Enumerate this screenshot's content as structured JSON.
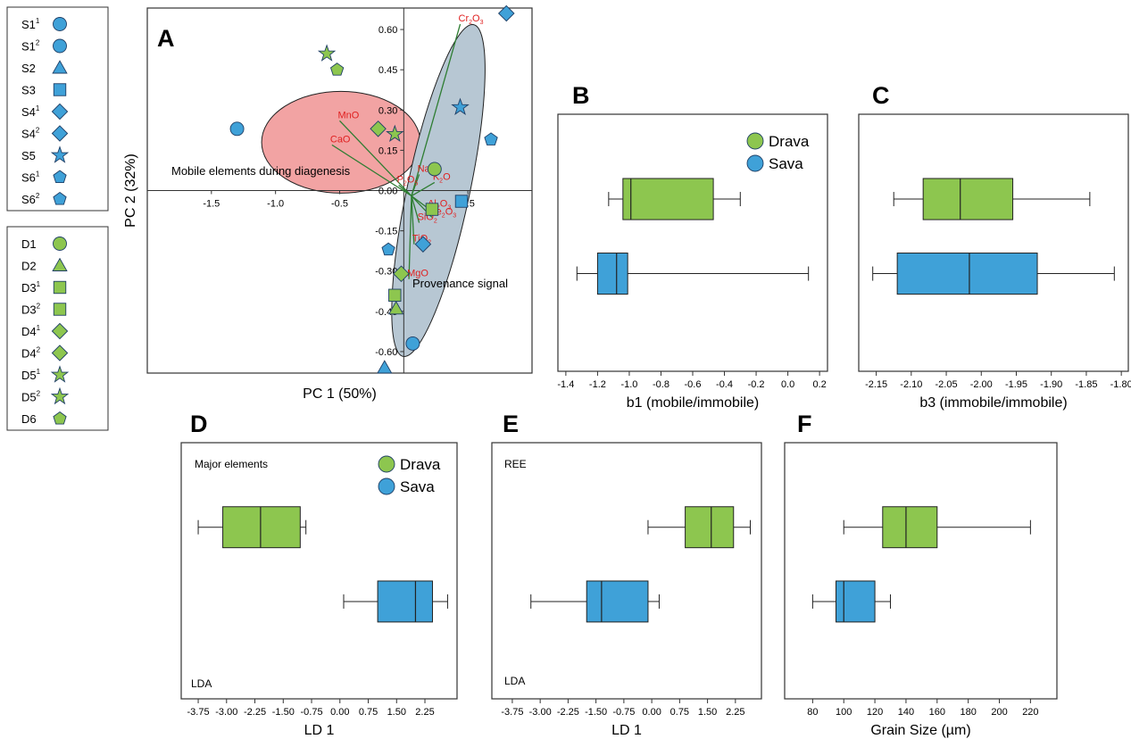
{
  "colors": {
    "drava": "#8dc64f",
    "sava": "#3fa1d8",
    "loading_text": "#e02020",
    "loading_line": "#2e7d32",
    "diagenesis_ellipse": "#f2a3a3",
    "provenance_ellipse": "#b7c7d3"
  },
  "sample_legend": {
    "sava": [
      {
        "base": "S1",
        "sup": "1",
        "marker": "circle"
      },
      {
        "base": "S1",
        "sup": "2",
        "marker": "circle"
      },
      {
        "base": "S2",
        "sup": "",
        "marker": "triangle"
      },
      {
        "base": "S3",
        "sup": "",
        "marker": "square"
      },
      {
        "base": "S4",
        "sup": "1",
        "marker": "diamond"
      },
      {
        "base": "S4",
        "sup": "2",
        "marker": "diamond"
      },
      {
        "base": "S5",
        "sup": "",
        "marker": "star"
      },
      {
        "base": "S6",
        "sup": "1",
        "marker": "pentagon"
      },
      {
        "base": "S6",
        "sup": "2",
        "marker": "pentagon"
      }
    ],
    "drava": [
      {
        "base": "D1",
        "sup": "",
        "marker": "circle"
      },
      {
        "base": "D2",
        "sup": "",
        "marker": "triangle"
      },
      {
        "base": "D3",
        "sup": "1",
        "marker": "square"
      },
      {
        "base": "D3",
        "sup": "2",
        "marker": "square"
      },
      {
        "base": "D4",
        "sup": "1",
        "marker": "diamond"
      },
      {
        "base": "D4",
        "sup": "2",
        "marker": "diamond"
      },
      {
        "base": "D5",
        "sup": "1",
        "marker": "star"
      },
      {
        "base": "D5",
        "sup": "2",
        "marker": "star"
      },
      {
        "base": "D6",
        "sup": "",
        "marker": "pentagon"
      }
    ]
  },
  "chart_data": [
    {
      "panel": "A",
      "type": "scatter",
      "xlabel": "PC 1 (50%)",
      "ylabel": "PC 2 (32%)",
      "xlim": [
        -2.0,
        1.0
      ],
      "ylim": [
        -0.68,
        0.68
      ],
      "x_ticks": [
        -1.5,
        -1.0,
        -0.5,
        0.5
      ],
      "x_tick_labels": [
        "-1.5",
        "-1.0",
        "-0.5",
        "0.5"
      ],
      "y_ticks": [
        0.6,
        0.45,
        0.3,
        0.15,
        0.0,
        -0.15,
        -0.3,
        -0.45,
        -0.6
      ],
      "y_tick_labels": [
        "0.60",
        "0.45",
        "0.30",
        "0.15",
        "0.00",
        "-0.15",
        "-0.30",
        "-0.45",
        "-0.60"
      ],
      "points": [
        {
          "group": "sava",
          "marker": "circle",
          "x": -1.3,
          "y": 0.23
        },
        {
          "group": "sava",
          "marker": "circle",
          "x": 0.07,
          "y": -0.57
        },
        {
          "group": "sava",
          "marker": "triangle",
          "x": -0.15,
          "y": -0.66
        },
        {
          "group": "sava",
          "marker": "square",
          "x": 0.45,
          "y": -0.04
        },
        {
          "group": "sava",
          "marker": "diamond",
          "x": 0.8,
          "y": 0.66
        },
        {
          "group": "sava",
          "marker": "diamond",
          "x": 0.15,
          "y": -0.2
        },
        {
          "group": "sava",
          "marker": "star",
          "x": 0.44,
          "y": 0.31
        },
        {
          "group": "sava",
          "marker": "pentagon",
          "x": 0.68,
          "y": 0.19
        },
        {
          "group": "sava",
          "marker": "pentagon",
          "x": -0.12,
          "y": -0.22
        },
        {
          "group": "drava",
          "marker": "circle",
          "x": 0.24,
          "y": 0.08
        },
        {
          "group": "drava",
          "marker": "triangle",
          "x": -0.06,
          "y": -0.44
        },
        {
          "group": "drava",
          "marker": "square",
          "x": -0.07,
          "y": -0.39
        },
        {
          "group": "drava",
          "marker": "square",
          "x": 0.22,
          "y": -0.07
        },
        {
          "group": "drava",
          "marker": "diamond",
          "x": -0.2,
          "y": 0.23
        },
        {
          "group": "drava",
          "marker": "diamond",
          "x": -0.02,
          "y": -0.31
        },
        {
          "group": "drava",
          "marker": "star",
          "x": -0.6,
          "y": 0.51
        },
        {
          "group": "drava",
          "marker": "star",
          "x": -0.07,
          "y": 0.21
        },
        {
          "group": "drava",
          "marker": "pentagon",
          "x": -0.52,
          "y": 0.45
        }
      ],
      "loadings": [
        {
          "name": "Cr2O3",
          "label": "Cr",
          "sub1": "2",
          "mid": "O",
          "sub2": "3",
          "x": 0.44,
          "y": 0.62
        },
        {
          "name": "MnO",
          "label": "MnO",
          "sub1": "",
          "mid": "",
          "sub2": "",
          "x": -0.5,
          "y": 0.26
        },
        {
          "name": "CaO",
          "label": "CaO",
          "sub1": "",
          "mid": "",
          "sub2": "",
          "x": -0.56,
          "y": 0.17
        },
        {
          "name": "Na2O",
          "label": "Na",
          "sub1": "2",
          "mid": "O",
          "sub2": "",
          "x": 0.12,
          "y": 0.06
        },
        {
          "name": "K2O",
          "label": "K",
          "sub1": "2",
          "mid": "O",
          "sub2": "",
          "x": 0.24,
          "y": 0.03
        },
        {
          "name": "P2O5",
          "label": "P",
          "sub1": "2",
          "mid": "O",
          "sub2": "5",
          "x": -0.04,
          "y": 0.02
        },
        {
          "name": "Al2O3",
          "label": "Al",
          "sub1": "2",
          "mid": "O",
          "sub2": "3",
          "x": 0.2,
          "y": -0.07
        },
        {
          "name": "Fe2O3",
          "label": "Fe",
          "sub1": "2",
          "mid": "O",
          "sub2": "3",
          "x": 0.22,
          "y": -0.1
        },
        {
          "name": "SiO2",
          "label": "SiO",
          "sub1": "2",
          "mid": "",
          "sub2": "",
          "x": 0.12,
          "y": -0.12
        },
        {
          "name": "TiO2",
          "label": "TiO",
          "sub1": "2",
          "mid": "",
          "sub2": "",
          "x": 0.08,
          "y": -0.2
        },
        {
          "name": "MgO",
          "label": "MgO",
          "sub1": "",
          "mid": "",
          "sub2": "",
          "x": 0.04,
          "y": -0.33
        }
      ],
      "annotations": [
        "Mobile elements during diagenesis",
        "Provenance signal"
      ]
    },
    {
      "panel": "B",
      "type": "boxplot",
      "xlabel": "b1 (mobile/immobile)",
      "xlim": [
        -1.45,
        0.25
      ],
      "x_ticks": [
        -1.4,
        -1.2,
        -1.0,
        -0.8,
        -0.6,
        -0.4,
        -0.2,
        0.0,
        0.2
      ],
      "x_tick_labels": [
        "-1.4",
        "-1.2",
        "-1.0",
        "-0.8",
        "-0.6",
        "-0.4",
        "-0.2",
        "0.0",
        "0.2"
      ],
      "legend": [
        "Drava",
        "Sava"
      ],
      "series": [
        {
          "name": "Drava",
          "min": -1.13,
          "q1": -1.04,
          "median": -0.99,
          "q3": -0.47,
          "max": -0.3
        },
        {
          "name": "Sava",
          "min": -1.33,
          "q1": -1.2,
          "median": -1.08,
          "q3": -1.01,
          "max": 0.13
        }
      ]
    },
    {
      "panel": "C",
      "type": "boxplot",
      "xlabel": "b3 (immobile/immobile)",
      "xlim": [
        -2.175,
        -1.79
      ],
      "x_ticks": [
        -2.15,
        -2.1,
        -2.05,
        -2.0,
        -1.95,
        -1.9,
        -1.85,
        -1.8
      ],
      "x_tick_labels": [
        "-2.15",
        "-2.10",
        "-2.05",
        "-2.00",
        "-1.95",
        "-1.90",
        "-1.85",
        "-1.80"
      ],
      "series": [
        {
          "name": "Drava",
          "min": -2.125,
          "q1": -2.083,
          "median": -2.03,
          "q3": -1.955,
          "max": -1.845
        },
        {
          "name": "Sava",
          "min": -2.155,
          "q1": -2.12,
          "median": -2.017,
          "q3": -1.92,
          "max": -1.81
        }
      ]
    },
    {
      "panel": "D",
      "type": "boxplot",
      "xlabel": "LD 1",
      "xlim": [
        -4.2,
        3.1
      ],
      "x_ticks": [
        -3.75,
        -3.0,
        -2.25,
        -1.5,
        -0.75,
        0.0,
        0.75,
        1.5,
        2.25
      ],
      "x_tick_labels": [
        "-3.75",
        "-3.00",
        "-2.25",
        "-1.50",
        "-0.75",
        "0.00",
        "0.75",
        "1.50",
        "2.25"
      ],
      "legend": [
        "Drava",
        "Sava"
      ],
      "notes": [
        "Major elements",
        "LDA"
      ],
      "series": [
        {
          "name": "Drava",
          "min": -3.75,
          "q1": -3.1,
          "median": -2.1,
          "q3": -1.05,
          "max": -0.9
        },
        {
          "name": "Sava",
          "min": 0.1,
          "q1": 1.0,
          "median": 2.0,
          "q3": 2.45,
          "max": 2.85
        }
      ]
    },
    {
      "panel": "E",
      "type": "boxplot",
      "xlabel": "LD 1",
      "xlim": [
        -4.3,
        2.95
      ],
      "x_ticks": [
        -3.75,
        -3.0,
        -2.25,
        -1.5,
        -0.75,
        0.0,
        0.75,
        1.5,
        2.25
      ],
      "x_tick_labels": [
        "-3.75",
        "-3.00",
        "-2.25",
        "-1.50",
        "-0.75",
        "0.00",
        "0.75",
        "1.50",
        "2.25"
      ],
      "notes": [
        "REE",
        "LDA"
      ],
      "series": [
        {
          "name": "Drava",
          "min": -0.1,
          "q1": 0.9,
          "median": 1.6,
          "q3": 2.2,
          "max": 2.65
        },
        {
          "name": "Sava",
          "min": -3.25,
          "q1": -1.75,
          "median": -1.35,
          "q3": -0.1,
          "max": 0.2
        }
      ]
    },
    {
      "panel": "F",
      "type": "boxplot",
      "xlabel": "Grain Size (µm)",
      "xlim": [
        62,
        237
      ],
      "x_ticks": [
        80,
        100,
        120,
        140,
        160,
        180,
        200,
        220
      ],
      "x_tick_labels": [
        "80",
        "100",
        "120",
        "140",
        "160",
        "180",
        "200",
        "220"
      ],
      "series": [
        {
          "name": "Drava",
          "min": 100,
          "q1": 125,
          "median": 140,
          "q3": 160,
          "max": 220
        },
        {
          "name": "Sava",
          "min": 80,
          "q1": 95,
          "median": 100,
          "q3": 120,
          "max": 130
        }
      ]
    }
  ]
}
